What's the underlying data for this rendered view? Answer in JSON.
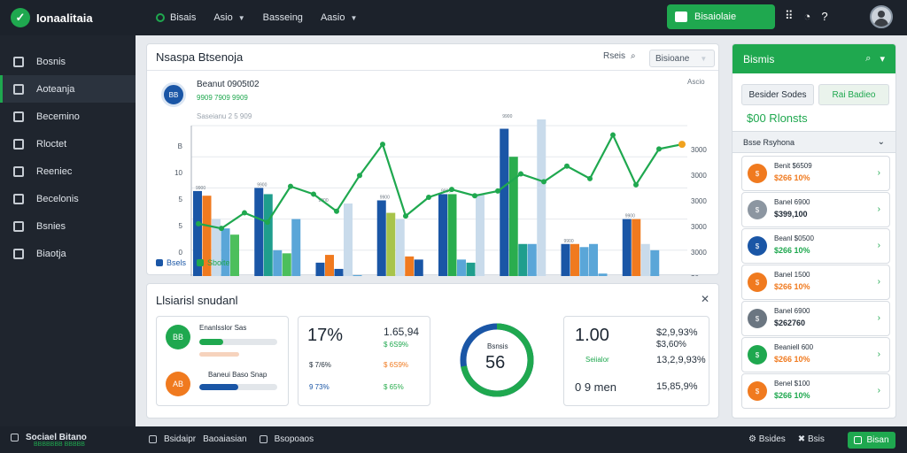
{
  "app": {
    "title": "Ionaalitaia"
  },
  "topnav": [
    {
      "label": "Bisais",
      "has_caret": false,
      "has_dot": true
    },
    {
      "label": "Asio",
      "has_caret": true,
      "has_dot": false
    },
    {
      "label": "Basseing",
      "has_caret": false,
      "has_dot": false
    },
    {
      "label": "Aasio",
      "has_caret": true,
      "has_dot": false
    }
  ],
  "top_cta": {
    "label": "Bisaiolaie"
  },
  "top_icons": {
    "grid": "grid-icon",
    "clock": "clock-icon",
    "help": "help-icon"
  },
  "sidebar": {
    "items": [
      {
        "label": "Bosnis",
        "icon": "document-icon"
      },
      {
        "label": "Aoteanja",
        "icon": "chart-icon",
        "active": true
      },
      {
        "label": "Becemino",
        "icon": "window-icon"
      },
      {
        "label": "Rloctet",
        "icon": "wrench-icon"
      },
      {
        "label": "Reeniec",
        "icon": "message-icon"
      },
      {
        "label": "Becelonis",
        "icon": "calendar-icon"
      },
      {
        "label": "Bsnies",
        "icon": "home-icon"
      },
      {
        "label": "Biaotja",
        "icon": "report-icon"
      }
    ]
  },
  "chart_panel": {
    "title": "Nsaspa Btsenoja",
    "search_label": "Rseis",
    "select_value": "Bisioane",
    "kpi_icon_text": "BB",
    "kpi_title": "Beanut 0905t02",
    "kpi_sub": "9909 7909 9909",
    "kpi_small": "Saseianu 2 5 909",
    "corner_label": "Ascio"
  },
  "chart_data": {
    "type": "bar",
    "x_labels": [
      "2004",
      "2000",
      "3000",
      "2004",
      "3000",
      "2004",
      "3A4",
      "3000"
    ],
    "left_ticks": [
      "B",
      "10",
      "5",
      "5",
      "0"
    ],
    "right_ticks": [
      "3000",
      "3000",
      "3000",
      "3000",
      "3000",
      "$0"
    ],
    "groups": [
      {
        "bars": [
          {
            "v": 0.58,
            "c": "#1a56a6"
          },
          {
            "v": 0.55,
            "c": "#f07a1f"
          },
          {
            "v": 0.4,
            "c": "#c9dbeb"
          },
          {
            "v": 0.34,
            "c": "#5aa6d8"
          },
          {
            "v": 0.3,
            "c": "#4cbf5c"
          }
        ]
      },
      {
        "bars": [
          {
            "v": 0.6,
            "c": "#1a56a6"
          },
          {
            "v": 0.56,
            "c": "#1f9e8d"
          },
          {
            "v": 0.2,
            "c": "#5aa6d8"
          },
          {
            "v": 0.18,
            "c": "#4cbf5c"
          },
          {
            "v": 0.4,
            "c": "#5aa6d8"
          }
        ]
      },
      {
        "bars": [
          {
            "v": 0.12,
            "c": "#1a56a6"
          },
          {
            "v": 0.17,
            "c": "#f07a1f"
          },
          {
            "v": 0.08,
            "c": "#1a56a6"
          },
          {
            "v": 0.5,
            "c": "#c9dbeb"
          },
          {
            "v": 0.04,
            "c": "#5aa6d8"
          }
        ]
      },
      {
        "bars": [
          {
            "v": 0.52,
            "c": "#1a56a6"
          },
          {
            "v": 0.44,
            "c": "#a8c44a"
          },
          {
            "v": 0.4,
            "c": "#c9dbeb"
          },
          {
            "v": 0.16,
            "c": "#f07a1f"
          },
          {
            "v": 0.14,
            "c": "#1a56a6"
          }
        ]
      },
      {
        "bars": [
          {
            "v": 0.56,
            "c": "#1a56a6"
          },
          {
            "v": 0.56,
            "c": "#2aad4e"
          },
          {
            "v": 0.14,
            "c": "#5aa6d8"
          },
          {
            "v": 0.12,
            "c": "#1f9e8d"
          },
          {
            "v": 0.56,
            "c": "#c9dbeb"
          }
        ]
      },
      {
        "bars": [
          {
            "v": 0.98,
            "c": "#1a56a6"
          },
          {
            "v": 0.8,
            "c": "#2aad4e"
          },
          {
            "v": 0.24,
            "c": "#1f9e8d"
          },
          {
            "v": 0.24,
            "c": "#5aa6d8"
          },
          {
            "v": 1.04,
            "c": "#c9dbeb"
          }
        ]
      },
      {
        "bars": [
          {
            "v": 0.24,
            "c": "#1a56a6"
          },
          {
            "v": 0.24,
            "c": "#f07a1f"
          },
          {
            "v": 0.22,
            "c": "#5aa6d8"
          },
          {
            "v": 0.24,
            "c": "#5aa6d8"
          },
          {
            "v": 0.05,
            "c": "#5aa6d8"
          }
        ]
      },
      {
        "bars": [
          {
            "v": 0.4,
            "c": "#1a56a6"
          },
          {
            "v": 0.4,
            "c": "#f07a1f"
          },
          {
            "v": 0.24,
            "c": "#c9dbeb"
          },
          {
            "v": 0.2,
            "c": "#5aa6d8"
          }
        ]
      }
    ],
    "line": {
      "color": "#1fa84f",
      "values": [
        0.37,
        0.34,
        0.44,
        0.38,
        0.61,
        0.56,
        0.45,
        0.68,
        0.88,
        0.42,
        0.54,
        0.59,
        0.55,
        0.58,
        0.69,
        0.64,
        0.74,
        0.66,
        0.94,
        0.62,
        0.85,
        0.88
      ]
    },
    "bar_labels": [
      "9900",
      "9900",
      "9900",
      "9900",
      "9900",
      "9900",
      "9900",
      "9900"
    ],
    "legend": [
      {
        "label": "Bsels",
        "color": "#1a56a6"
      },
      {
        "label": "Sboite",
        "color": "#1fa84f"
      }
    ]
  },
  "stats_panel": {
    "title": "Llsiarisl snudanl",
    "box1": {
      "icon": "BB",
      "icon2": "AB",
      "line1": "Enanlsslor Sas",
      "line2": "Baneui Baso Snap",
      "bar1": 0.31,
      "bar2": 0.5
    },
    "box2": {
      "big": "17%",
      "right_top": "1.65,94",
      "right_sub": "$ 6S9%",
      "row2_left": "$ 7/6%",
      "row2_right": "$ 6S9%",
      "row3_left": "9 73%",
      "row3_right": "$ 65%"
    },
    "donut": {
      "value": "56",
      "label": "Bsnsis",
      "fraction": 0.72
    },
    "box4": {
      "big": "1.00",
      "top_right": "$2,9,93%",
      "sub_right": "$3,60%",
      "row2_left": "Seiialor",
      "row2_right": "13,2,9,93%",
      "row3_left": "0 9 men",
      "row3_right": "15,85,9%"
    }
  },
  "right_panel": {
    "title": "Bismis",
    "btn1": "Besider Sodes",
    "btn2": "Rai Badieo",
    "big": "$00 Rlonsts",
    "section": "Bsse Rsyhona",
    "items": [
      {
        "a": "Benit $6509",
        "b": "$266 10%",
        "color": "#f07a1f",
        "bcolor": "#f07a1f"
      },
      {
        "a": "Banel 6900",
        "b": "$399,100",
        "color": "#8c96a1",
        "bcolor": "#1d2733"
      },
      {
        "a": "Beanl $0500",
        "b": "$266 10%",
        "color": "#1a56a6",
        "bcolor": "#1fa84f"
      },
      {
        "a": "Banel 1500",
        "b": "$266 10%",
        "color": "#f07a1f",
        "bcolor": "#f07a1f"
      },
      {
        "a": "Banel 6900",
        "b": "$262760",
        "color": "#6b7681",
        "bcolor": "#1d2733"
      },
      {
        "a": "Beaniell 600",
        "b": "$266 10%",
        "color": "#1fa84f",
        "bcolor": "#f07a1f"
      },
      {
        "a": "Benel $100",
        "b": "$266 10%",
        "color": "#f07a1f",
        "bcolor": "#1fa84f"
      }
    ]
  },
  "footer": {
    "brand": "Sociael Bitano",
    "brand_sub": "BBBBBBB BBBBB",
    "mid1": "Bsidaipr",
    "mid2": "Baoaiasian",
    "mid3": "Bsopoaos",
    "right1": "Bsides",
    "right2": "Bsis",
    "cta": "Bisan"
  }
}
